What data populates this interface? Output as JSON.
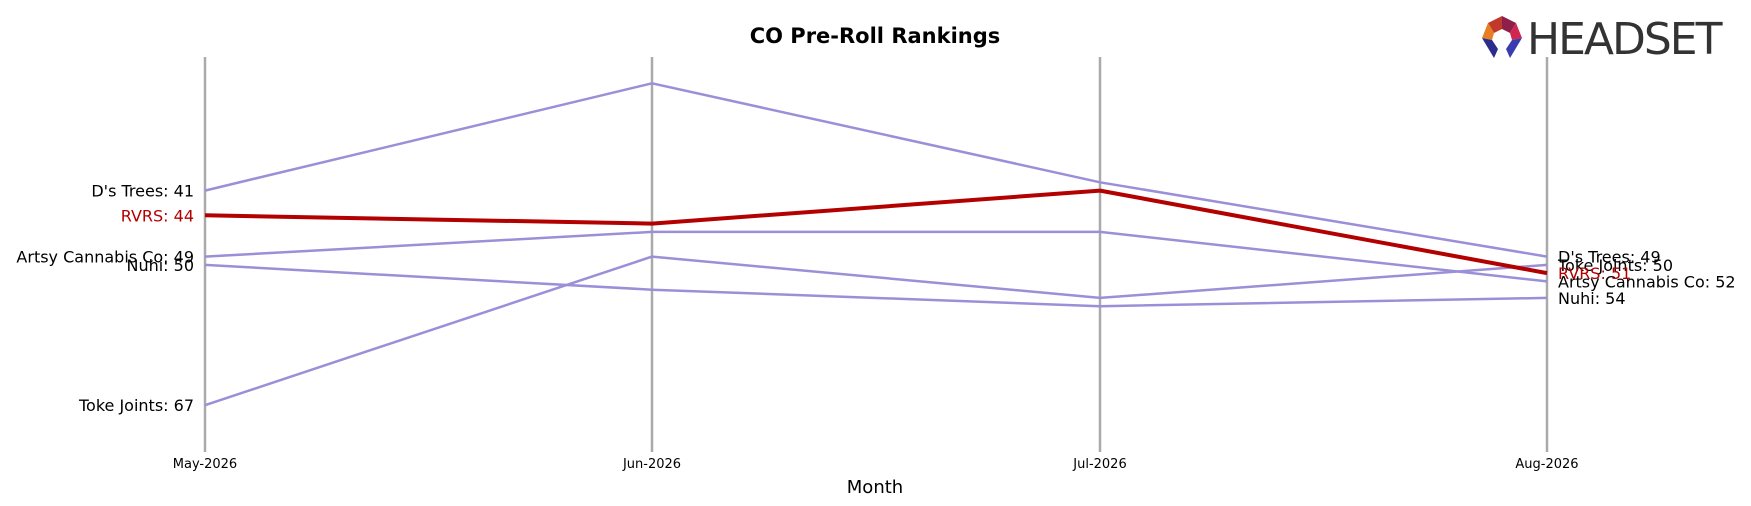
{
  "brand": {
    "name": "HEADSET"
  },
  "colors": {
    "highlight": "#b30000",
    "others": "#9b8fd8",
    "gridline": "#aaaaaa",
    "logo_text": "#333333"
  },
  "chart_data": {
    "type": "line",
    "title": "CO Pre-Roll Rankings",
    "xlabel": "Month",
    "ylabel": "",
    "y_inverted": true,
    "ylim": [
      27,
      70
    ],
    "grid": "vertical lines at each month",
    "legend": "none (end labels)",
    "categories": [
      "May-2026",
      "Jun-2026",
      "Jul-2026",
      "Aug-2026"
    ],
    "series": [
      {
        "name": "D's Trees",
        "values": [
          41,
          28,
          40,
          49
        ],
        "highlight": false
      },
      {
        "name": "Artsy Cannabis Co",
        "values": [
          49,
          46,
          46,
          52
        ],
        "highlight": false
      },
      {
        "name": "Nuhi",
        "values": [
          50,
          53,
          55,
          54
        ],
        "highlight": false
      },
      {
        "name": "Toke Joints",
        "values": [
          67,
          49,
          54,
          50
        ],
        "highlight": false
      },
      {
        "name": "RVRS",
        "values": [
          44,
          45,
          41,
          51
        ],
        "highlight": true
      }
    ]
  }
}
